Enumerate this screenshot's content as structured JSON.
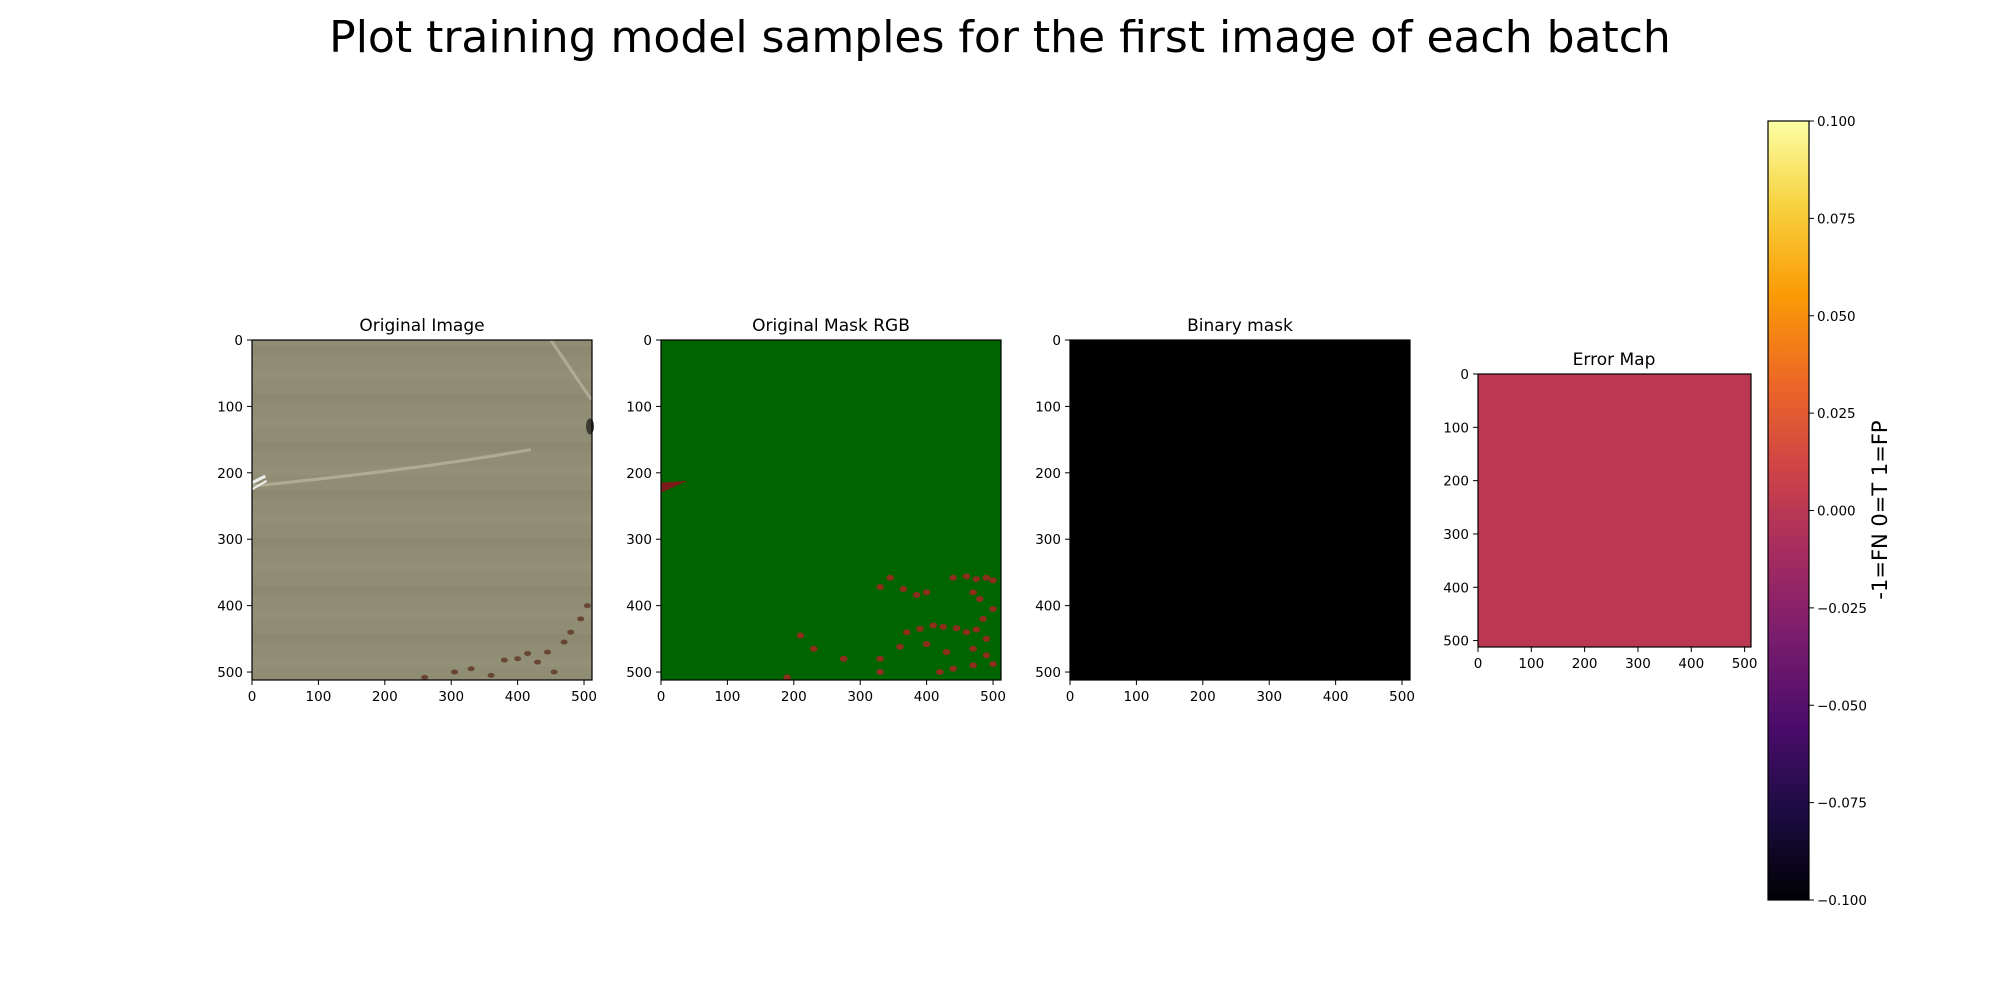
{
  "figure": {
    "suptitle": "Plot training model samples for the first image of each batch"
  },
  "chart_data": [
    {
      "type": "heatmap",
      "title": "Original Image",
      "content": "rgb-photo-aerial-grassland",
      "xlim": [
        0,
        511
      ],
      "ylim": [
        511,
        0
      ],
      "xticks": [
        0,
        100,
        200,
        300,
        400,
        500
      ],
      "yticks": [
        0,
        100,
        200,
        300,
        400,
        500
      ],
      "base_color": "#8f8d74",
      "dark_patches": [
        [
          305,
          500
        ],
        [
          330,
          495
        ],
        [
          360,
          505
        ],
        [
          400,
          480
        ],
        [
          415,
          472
        ],
        [
          430,
          485
        ],
        [
          445,
          470
        ],
        [
          470,
          455
        ],
        [
          480,
          440
        ],
        [
          495,
          420
        ],
        [
          505,
          400
        ],
        [
          380,
          482
        ],
        [
          455,
          500
        ],
        [
          260,
          508
        ]
      ]
    },
    {
      "type": "heatmap",
      "title": "Original Mask RGB",
      "content": "segmentation-mask-rgb",
      "xlim": [
        0,
        511
      ],
      "ylim": [
        511,
        0
      ],
      "xticks": [
        0,
        100,
        200,
        300,
        400,
        500
      ],
      "yticks": [
        0,
        100,
        200,
        300,
        400,
        500
      ],
      "background_color": "#006400",
      "blob_color": "#8b2e1b",
      "dark_red_region": [
        [
          0,
          215
        ],
        [
          40,
          212
        ],
        [
          0,
          230
        ]
      ],
      "blobs": [
        [
          330,
          372
        ],
        [
          345,
          358
        ],
        [
          365,
          375
        ],
        [
          385,
          384
        ],
        [
          400,
          380
        ],
        [
          440,
          358
        ],
        [
          460,
          356
        ],
        [
          475,
          360
        ],
        [
          490,
          358
        ],
        [
          500,
          362
        ],
        [
          480,
          390
        ],
        [
          470,
          380
        ],
        [
          500,
          405
        ],
        [
          485,
          420
        ],
        [
          370,
          440
        ],
        [
          390,
          435
        ],
        [
          410,
          430
        ],
        [
          425,
          432
        ],
        [
          445,
          434
        ],
        [
          460,
          440
        ],
        [
          475,
          436
        ],
        [
          490,
          450
        ],
        [
          400,
          458
        ],
        [
          430,
          470
        ],
        [
          470,
          465
        ],
        [
          490,
          475
        ],
        [
          360,
          462
        ],
        [
          210,
          445
        ],
        [
          230,
          465
        ],
        [
          275,
          480
        ],
        [
          330,
          480
        ],
        [
          330,
          500
        ],
        [
          420,
          500
        ],
        [
          440,
          495
        ],
        [
          190,
          508
        ],
        [
          470,
          490
        ],
        [
          500,
          488
        ]
      ]
    },
    {
      "type": "heatmap",
      "title": "Binary mask",
      "content": "binary-mask-all-zero",
      "xlim": [
        0,
        511
      ],
      "ylim": [
        511,
        0
      ],
      "xticks": [
        0,
        100,
        200,
        300,
        400,
        500
      ],
      "yticks": [
        0,
        100,
        200,
        300,
        400,
        500
      ],
      "fill_color": "#000000",
      "value": 0
    },
    {
      "type": "heatmap",
      "title": "Error Map",
      "content": "error-map-uniform-zero",
      "xlim": [
        0,
        511
      ],
      "ylim": [
        511,
        0
      ],
      "xticks": [
        0,
        100,
        200,
        300,
        400,
        500
      ],
      "yticks": [
        0,
        100,
        200,
        300,
        400,
        500
      ],
      "value": 0.0,
      "fill_color": "#bb3754"
    }
  ],
  "colorbar": {
    "label": "-1=FN 0=T 1=FP",
    "colormap": "inferno",
    "vmin": -0.1,
    "vmax": 0.1,
    "ticks": [
      "0.100",
      "0.075",
      "0.050",
      "0.025",
      "0.000",
      "−0.025",
      "−0.050",
      "−0.075",
      "−0.100"
    ],
    "stops": [
      "#000004",
      "#1b0c41",
      "#4a0c6b",
      "#781c6d",
      "#a52c60",
      "#cf4446",
      "#ed6925",
      "#fb9b06",
      "#f7d13d",
      "#fcffa4"
    ]
  }
}
